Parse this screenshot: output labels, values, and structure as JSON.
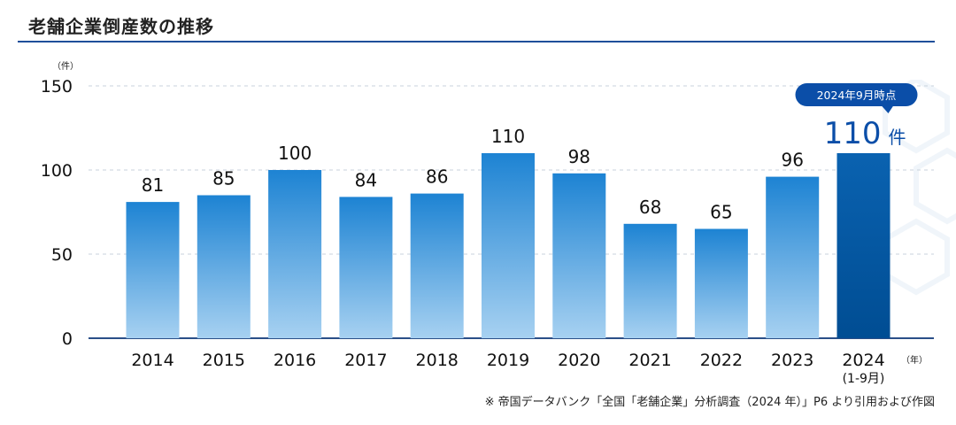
{
  "title": "老舗企業倒産数の推移",
  "source_note": "※ 帝国データバンク「全国「老舗企業」分析調査（2024 年）」P6 より引用および作図",
  "colors": {
    "bar_top": "#1d83d3",
    "bar_bottom": "#a7d1f1",
    "highlight_top": "#0a62b0",
    "highlight_bottom": "#004d93",
    "accent": "#0b4ea8",
    "grid": "#c9d2dc",
    "axis": "#2a4f88"
  },
  "chart_data": {
    "type": "bar",
    "title": "老舗企業倒産数の推移",
    "y_unit": "（件）",
    "x_unit": "（年）",
    "ylim": [
      0,
      150
    ],
    "yticks": [
      0,
      50,
      100,
      150
    ],
    "grid": true,
    "categories": [
      "2014",
      "2015",
      "2016",
      "2017",
      "2018",
      "2019",
      "2020",
      "2021",
      "2022",
      "2023",
      "2024"
    ],
    "category_sublabels": [
      "",
      "",
      "",
      "",
      "",
      "",
      "",
      "",
      "",
      "",
      "(1-9月)"
    ],
    "values": [
      81,
      85,
      100,
      84,
      86,
      110,
      98,
      68,
      65,
      96,
      110
    ],
    "highlight_index": 10,
    "callout": {
      "badge": "2024年9月時点",
      "value": "110",
      "unit": "件"
    }
  }
}
